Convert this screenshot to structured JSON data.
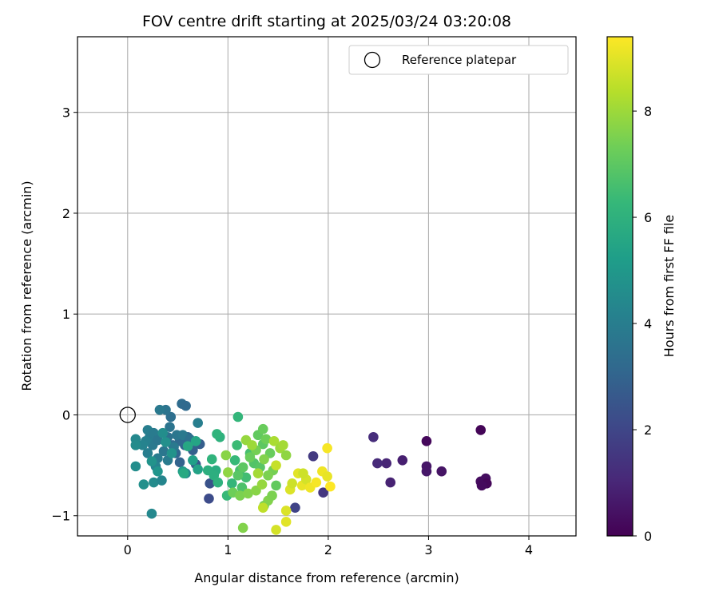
{
  "chart_data": {
    "type": "scatter",
    "title": "FOV centre drift starting at 2025/03/24 03:20:08",
    "xlabel": "Angular distance from reference (arcmin)",
    "ylabel": "Rotation from reference (arcmin)",
    "xlim": [
      -0.5,
      4.47
    ],
    "ylim": [
      -1.2,
      3.75
    ],
    "xticks": [
      0,
      1,
      2,
      3,
      4
    ],
    "xtick_labels": [
      "0",
      "1",
      "2",
      "3",
      "4"
    ],
    "yticks": [
      -1,
      0,
      1,
      2,
      3
    ],
    "ytick_labels": [
      "−1",
      "0",
      "1",
      "2",
      "3"
    ],
    "grid": true,
    "legend": {
      "placement": "top-right",
      "entries": [
        {
          "label": "Reference platepar",
          "marker": "open-circle",
          "color": "#000000"
        }
      ]
    },
    "reference_point": {
      "x": 0,
      "y": 0
    },
    "colorbar": {
      "label": "Hours from first FF file",
      "colormap": "viridis",
      "range": [
        0,
        9.4
      ],
      "ticks": [
        0,
        2,
        4,
        6,
        8
      ],
      "tick_labels": [
        "0",
        "2",
        "4",
        "6",
        "8"
      ]
    },
    "points": [
      [
        3.52,
        -0.15,
        0.1
      ],
      [
        2.98,
        -0.26,
        0.2
      ],
      [
        3.52,
        -0.66,
        0.3
      ],
      [
        3.57,
        -0.63,
        0.35
      ],
      [
        3.58,
        -0.68,
        0.15
      ],
      [
        3.53,
        -0.7,
        0.25
      ],
      [
        3.13,
        -0.56,
        0.5
      ],
      [
        2.98,
        -0.56,
        0.6
      ],
      [
        2.98,
        -0.51,
        0.55
      ],
      [
        2.74,
        -0.45,
        0.8
      ],
      [
        2.62,
        -0.67,
        0.9
      ],
      [
        2.58,
        -0.48,
        1.0
      ],
      [
        2.49,
        -0.48,
        1.1
      ],
      [
        2.45,
        -0.22,
        1.2
      ],
      [
        1.95,
        -0.77,
        1.5
      ],
      [
        1.85,
        -0.41,
        1.6
      ],
      [
        1.67,
        -0.92,
        1.9
      ],
      [
        0.81,
        -0.83,
        2.2
      ],
      [
        0.82,
        -0.68,
        2.4
      ],
      [
        0.68,
        -0.49,
        2.6
      ],
      [
        0.72,
        -0.29,
        2.8
      ],
      [
        0.65,
        -0.35,
        2.9
      ],
      [
        0.57,
        -0.3,
        3.0
      ],
      [
        0.6,
        -0.22,
        3.1
      ],
      [
        0.52,
        -0.26,
        3.2
      ],
      [
        0.54,
        0.11,
        3.3
      ],
      [
        0.58,
        0.09,
        3.2
      ],
      [
        0.52,
        -0.47,
        3.0
      ],
      [
        0.48,
        -0.38,
        3.1
      ],
      [
        0.45,
        -0.3,
        3.3
      ],
      [
        0.4,
        -0.22,
        3.5
      ],
      [
        0.42,
        -0.12,
        3.6
      ],
      [
        0.43,
        -0.02,
        3.4
      ],
      [
        0.38,
        0.05,
        3.6
      ],
      [
        0.32,
        0.05,
        3.8
      ],
      [
        0.36,
        -0.36,
        3.7
      ],
      [
        0.3,
        -0.43,
        3.9
      ],
      [
        0.25,
        -0.3,
        3.8
      ],
      [
        0.22,
        -0.22,
        3.9
      ],
      [
        0.2,
        -0.15,
        4.0
      ],
      [
        0.26,
        -0.18,
        3.9
      ],
      [
        0.3,
        -0.25,
        3.7
      ],
      [
        0.18,
        -0.26,
        4.1
      ],
      [
        0.15,
        -0.3,
        4.2
      ],
      [
        0.2,
        -0.38,
        4.0
      ],
      [
        0.08,
        -0.24,
        4.4
      ],
      [
        0.08,
        -0.3,
        4.5
      ],
      [
        0.08,
        -0.51,
        4.6
      ],
      [
        0.16,
        -0.69,
        4.7
      ],
      [
        0.24,
        -0.98,
        4.4
      ],
      [
        0.26,
        -0.67,
        4.5
      ],
      [
        0.28,
        -0.51,
        4.2
      ],
      [
        0.34,
        -0.65,
        4.3
      ],
      [
        0.4,
        -0.45,
        3.9
      ],
      [
        0.46,
        -0.32,
        3.8
      ],
      [
        0.49,
        -0.2,
        3.7
      ],
      [
        0.55,
        -0.2,
        3.8
      ],
      [
        0.62,
        -0.24,
        3.5
      ],
      [
        0.58,
        -0.58,
        4.4
      ],
      [
        0.7,
        -0.08,
        4.0
      ],
      [
        0.35,
        -0.18,
        4.6
      ],
      [
        0.38,
        -0.27,
        4.7
      ],
      [
        0.44,
        -0.38,
        4.8
      ],
      [
        0.24,
        -0.46,
        4.8
      ],
      [
        0.3,
        -0.56,
        4.9
      ],
      [
        0.55,
        -0.56,
        5.2
      ],
      [
        0.65,
        -0.45,
        5.3
      ],
      [
        0.7,
        -0.54,
        5.4
      ],
      [
        0.68,
        -0.26,
        5.5
      ],
      [
        0.6,
        -0.31,
        5.6
      ],
      [
        0.56,
        -0.58,
        5.7
      ],
      [
        0.88,
        -0.55,
        5.8
      ],
      [
        0.86,
        -0.6,
        5.9
      ],
      [
        0.9,
        -0.67,
        6.0
      ],
      [
        0.8,
        -0.55,
        5.9
      ],
      [
        0.84,
        -0.44,
        6.1
      ],
      [
        0.92,
        -0.22,
        6.0
      ],
      [
        0.89,
        -0.19,
        6.1
      ],
      [
        0.99,
        -0.8,
        6.3
      ],
      [
        1.04,
        -0.68,
        6.2
      ],
      [
        1.07,
        -0.45,
        6.3
      ],
      [
        1.09,
        -0.3,
        6.4
      ],
      [
        1.1,
        -0.02,
        6.2
      ],
      [
        1.12,
        -0.55,
        6.6
      ],
      [
        1.14,
        -0.72,
        6.7
      ],
      [
        1.18,
        -0.62,
        6.5
      ],
      [
        1.22,
        -0.38,
        6.6
      ],
      [
        1.26,
        -0.48,
        6.8
      ],
      [
        1.32,
        -0.52,
        6.9
      ],
      [
        1.35,
        -0.29,
        7.0
      ],
      [
        1.3,
        -0.2,
        7.1
      ],
      [
        1.35,
        -0.14,
        7.2
      ],
      [
        1.38,
        -0.24,
        7.3
      ],
      [
        1.42,
        -0.38,
        7.2
      ],
      [
        1.45,
        -0.55,
        7.4
      ],
      [
        1.48,
        -0.7,
        7.1
      ],
      [
        1.4,
        -0.6,
        7.5
      ],
      [
        1.36,
        -0.44,
        7.6
      ],
      [
        1.28,
        -0.35,
        7.4
      ],
      [
        1.22,
        -0.42,
        7.2
      ],
      [
        1.15,
        -0.52,
        7.0
      ],
      [
        1.1,
        -0.6,
        6.9
      ],
      [
        1.05,
        -0.77,
        7.3
      ],
      [
        1.12,
        -0.8,
        7.5
      ],
      [
        1.2,
        -0.78,
        7.6
      ],
      [
        1.28,
        -0.75,
        7.7
      ],
      [
        1.36,
        -0.9,
        7.4
      ],
      [
        1.4,
        -0.85,
        7.6
      ],
      [
        1.44,
        -0.8,
        7.5
      ],
      [
        1.0,
        -0.57,
        7.8
      ],
      [
        0.98,
        -0.4,
        7.7
      ],
      [
        1.15,
        -1.12,
        7.6
      ],
      [
        1.18,
        -0.25,
        7.9
      ],
      [
        1.24,
        -0.3,
        8.0
      ],
      [
        1.3,
        -0.58,
        8.1
      ],
      [
        1.34,
        -0.69,
        7.9
      ],
      [
        1.46,
        -0.26,
        8.2
      ],
      [
        1.52,
        -0.33,
        8.0
      ],
      [
        1.55,
        -0.3,
        8.1
      ],
      [
        1.58,
        -0.4,
        7.8
      ],
      [
        1.48,
        -1.14,
        8.8
      ],
      [
        1.58,
        -0.95,
        8.9
      ],
      [
        1.58,
        -1.06,
        9.0
      ],
      [
        1.62,
        -0.74,
        8.9
      ],
      [
        1.7,
        -0.58,
        9.0
      ],
      [
        1.74,
        -0.7,
        9.1
      ],
      [
        1.78,
        -0.64,
        8.8
      ],
      [
        1.75,
        -0.58,
        8.7
      ],
      [
        1.82,
        -0.72,
        9.2
      ],
      [
        1.88,
        -0.67,
        9.3
      ],
      [
        1.94,
        -0.56,
        9.2
      ],
      [
        1.99,
        -0.61,
        9.1
      ],
      [
        2.02,
        -0.71,
        9.4
      ],
      [
        1.99,
        -0.33,
        9.3
      ],
      [
        1.35,
        -0.92,
        8.5
      ],
      [
        1.48,
        -0.5,
        8.6
      ],
      [
        1.64,
        -0.68,
        8.7
      ]
    ]
  }
}
